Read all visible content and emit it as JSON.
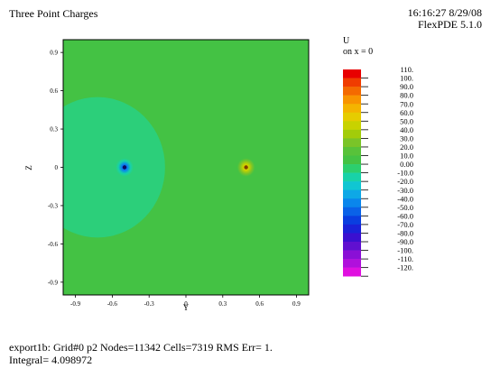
{
  "header": {
    "title": "Three Point Charges",
    "timestamp": "16:16:27 8/29/08",
    "software": "FlexPDE 5.1.0"
  },
  "legend": {
    "variable": "U",
    "subtitle": "on x = 0"
  },
  "footer": {
    "line1": "export1b:  Grid#0  p2  Nodes=11342 Cells=7319 RMS Err= 1.",
    "line2": "Integral=  4.098972"
  },
  "colors": {
    "background_field": "#44c244",
    "large_region": "#2ccf7a",
    "positive_charge_center": "#f2d000",
    "negative_charge_center": "#1a2bd8"
  },
  "chart_data": {
    "type": "heatmap",
    "title": "Three Point Charges",
    "xlabel": "Y",
    "ylabel": "Z",
    "xlim": [
      -1.0,
      1.0
    ],
    "ylim": [
      -1.0,
      1.0
    ],
    "x_ticks": [
      "-0.9",
      "-0.6",
      "-0.3",
      "0",
      "0.3",
      "0.6",
      "0.9"
    ],
    "x_tick_values": [
      -0.9,
      -0.6,
      -0.3,
      0,
      0.3,
      0.6,
      0.9
    ],
    "y_ticks": [
      "0.9",
      "0.6",
      "0.3",
      "0",
      "-0.3",
      "-0.6",
      "-0.9"
    ],
    "y_tick_values": [
      0.9,
      0.6,
      0.3,
      0,
      -0.3,
      -0.6,
      -0.9
    ],
    "colorbar_levels": [
      "110.",
      "100.",
      "90.0",
      "80.0",
      "70.0",
      "60.0",
      "50.0",
      "40.0",
      "30.0",
      "20.0",
      "10.0",
      "0.00",
      "-10.0",
      "-20.0",
      "-30.0",
      "-40.0",
      "-50.0",
      "-60.0",
      "-70.0",
      "-80.0",
      "-90.0",
      "-100.",
      "-110.",
      "-120."
    ],
    "colorbar_colors": [
      "#e80000",
      "#f03c00",
      "#f46a00",
      "#f89400",
      "#f4b400",
      "#e6cc00",
      "#c8d200",
      "#a2cc0a",
      "#7ac428",
      "#58c23a",
      "#44c244",
      "#2ccf6e",
      "#18d2a8",
      "#10c6d2",
      "#0ea8e6",
      "#0a86ec",
      "#0a62e8",
      "#0a3ee0",
      "#1a22d8",
      "#3a10d0",
      "#6010d0",
      "#8a10d6",
      "#b010dc",
      "#e010e0"
    ],
    "features": [
      {
        "kind": "region",
        "cy": -0.72,
        "cz": 0.0,
        "r": 0.55,
        "level": "0.00"
      },
      {
        "kind": "charge",
        "cy": -0.5,
        "cz": 0.0,
        "r": 0.045,
        "sign": "negative"
      },
      {
        "kind": "charge",
        "cy": 0.49,
        "cz": 0.0,
        "r": 0.045,
        "sign": "positive"
      }
    ],
    "grid": false
  }
}
